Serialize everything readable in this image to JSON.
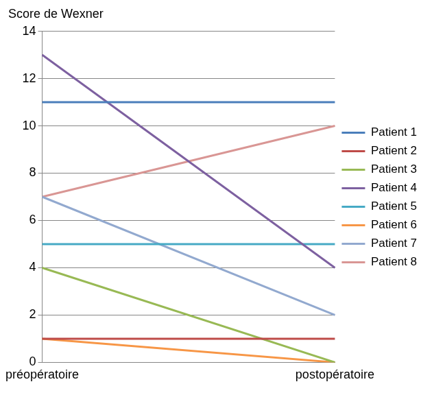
{
  "chart_data": {
    "type": "line",
    "y_label": "Score de Wexner",
    "categories": [
      "préopératoire",
      "postopératoire"
    ],
    "series": [
      {
        "name": "Patient 1",
        "color": "#4a7ebb",
        "values": [
          11,
          11
        ]
      },
      {
        "name": "Patient 2",
        "color": "#be4b48",
        "values": [
          1,
          1
        ]
      },
      {
        "name": "Patient 3",
        "color": "#98b954",
        "values": [
          4,
          0
        ]
      },
      {
        "name": "Patient 4",
        "color": "#7d60a0",
        "values": [
          13,
          4
        ]
      },
      {
        "name": "Patient 5",
        "color": "#46aac5",
        "values": [
          5,
          5
        ]
      },
      {
        "name": "Patient 6",
        "color": "#f79646",
        "values": [
          1,
          0
        ]
      },
      {
        "name": "Patient 7",
        "color": "#92a9cf",
        "values": [
          7,
          2
        ]
      },
      {
        "name": "Patient 8",
        "color": "#d99694",
        "values": [
          7,
          10
        ]
      }
    ],
    "ylim": [
      0,
      14
    ],
    "yticks": [
      0,
      2,
      4,
      6,
      8,
      10,
      12,
      14
    ],
    "grid": true,
    "legend": "right",
    "marker": "none"
  }
}
